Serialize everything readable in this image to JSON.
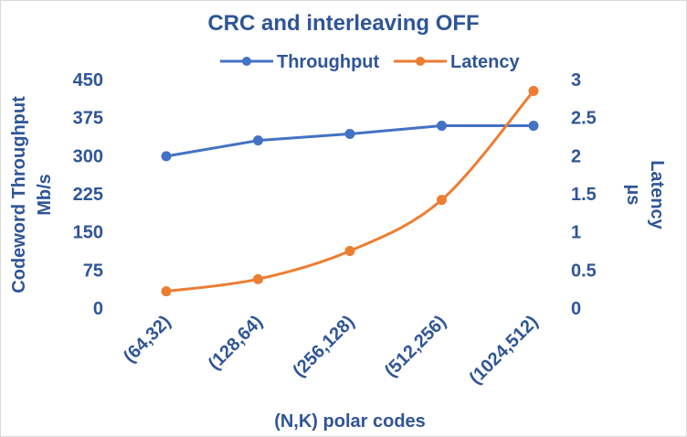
{
  "chart_data": {
    "type": "line",
    "title": "CRC and interleaving OFF",
    "xlabel": "(N,K) polar codes",
    "ylabel_left_line1": "Codeword Throughput",
    "ylabel_left_line2": "Mb/s",
    "ylabel_right_line1": "Latency",
    "ylabel_right_line2": "µs",
    "categories": [
      "(64,32)",
      "(128,64)",
      "(256,128)",
      "(512,256)",
      "(1024,512)"
    ],
    "ylim_left": [
      0,
      450
    ],
    "yticks_left": [
      "0",
      "75",
      "150",
      "225",
      "300",
      "375",
      "450"
    ],
    "ylim_right": [
      0,
      3
    ],
    "yticks_right": [
      "0",
      "0.5",
      "1",
      "1.5",
      "2",
      "2.5",
      "3"
    ],
    "legend_position": "top",
    "grid": false,
    "series": [
      {
        "name": "Throughput",
        "axis": "left",
        "color": "#4472C4",
        "values": [
          299,
          330,
          343,
          359,
          359
        ],
        "smooth": false
      },
      {
        "name": "Latency",
        "axis": "right",
        "color": "#ED7D31",
        "values": [
          0.22,
          0.38,
          0.75,
          1.42,
          2.85
        ],
        "smooth": true
      }
    ],
    "text_color": "#2F5597"
  }
}
